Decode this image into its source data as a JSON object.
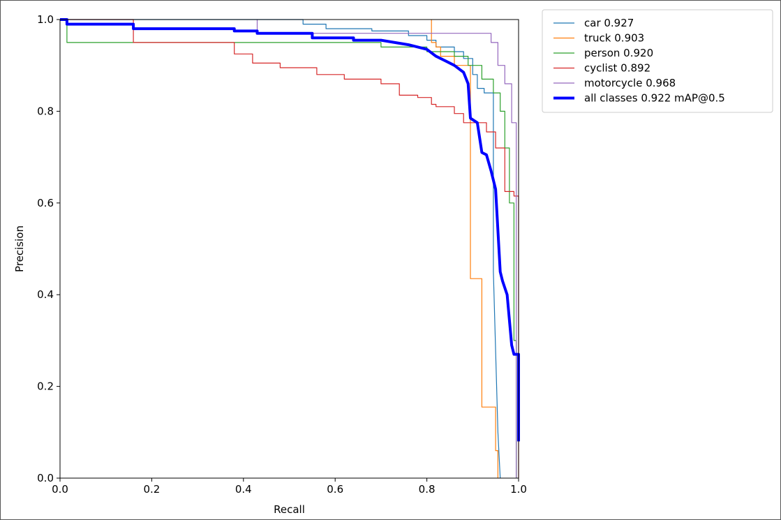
{
  "chart_data": {
    "type": "line",
    "title": "",
    "xlabel": "Recall",
    "ylabel": "Precision",
    "xlim": [
      0,
      1
    ],
    "ylim": [
      0,
      1
    ],
    "xticks": [
      "0.0",
      "0.2",
      "0.4",
      "0.6",
      "0.8",
      "1.0"
    ],
    "yticks": [
      "0.0",
      "0.2",
      "0.4",
      "0.6",
      "0.8",
      "1.0"
    ],
    "grid": false,
    "legend_position": "outside-upper-right",
    "series": [
      {
        "name": "car 0.927",
        "color": "#1f77b4",
        "emphasis": false,
        "x": [
          0,
          0.53,
          0.53,
          0.58,
          0.58,
          0.68,
          0.68,
          0.76,
          0.76,
          0.8,
          0.8,
          0.82,
          0.82,
          0.86,
          0.86,
          0.88,
          0.88,
          0.9,
          0.9,
          0.91,
          0.91,
          0.925,
          0.925,
          0.945,
          0.945,
          0.955,
          0.96
        ],
        "y": [
          1.0,
          1.0,
          0.99,
          0.99,
          0.98,
          0.98,
          0.975,
          0.975,
          0.965,
          0.965,
          0.955,
          0.955,
          0.94,
          0.94,
          0.93,
          0.93,
          0.915,
          0.915,
          0.88,
          0.88,
          0.85,
          0.85,
          0.84,
          0.84,
          0.45,
          0.1,
          0.0
        ]
      },
      {
        "name": "truck 0.903",
        "color": "#ff7f0e",
        "emphasis": false,
        "x": [
          0.81,
          0.81,
          0.82,
          0.82,
          0.83,
          0.83,
          0.86,
          0.86,
          0.895,
          0.895,
          0.92,
          0.92,
          0.95,
          0.95,
          0.955,
          0.955
        ],
        "y": [
          1.0,
          0.95,
          0.95,
          0.94,
          0.94,
          0.92,
          0.92,
          0.9,
          0.9,
          0.435,
          0.435,
          0.155,
          0.155,
          0.06,
          0.06,
          0.0
        ]
      },
      {
        "name": "person 0.920",
        "color": "#2ca02c",
        "emphasis": false,
        "x": [
          0,
          0.015,
          0.015,
          0.7,
          0.7,
          0.8,
          0.8,
          0.86,
          0.86,
          0.89,
          0.89,
          0.92,
          0.92,
          0.945,
          0.945,
          0.96,
          0.96,
          0.97,
          0.97,
          0.98,
          0.98,
          0.99,
          0.99,
          0.995,
          0.995
        ],
        "y": [
          1.0,
          1.0,
          0.95,
          0.95,
          0.94,
          0.94,
          0.93,
          0.93,
          0.92,
          0.92,
          0.9,
          0.9,
          0.87,
          0.87,
          0.84,
          0.84,
          0.8,
          0.8,
          0.72,
          0.72,
          0.6,
          0.6,
          0.3,
          0.3,
          0.0
        ]
      },
      {
        "name": "cyclist 0.892",
        "color": "#d62728",
        "emphasis": false,
        "x": [
          0,
          0.16,
          0.16,
          0.38,
          0.38,
          0.42,
          0.42,
          0.48,
          0.48,
          0.56,
          0.56,
          0.62,
          0.62,
          0.7,
          0.7,
          0.74,
          0.74,
          0.78,
          0.78,
          0.81,
          0.81,
          0.82,
          0.82,
          0.86,
          0.86,
          0.88,
          0.88,
          0.93,
          0.93,
          0.95,
          0.95,
          0.97,
          0.97,
          0.99,
          0.99,
          1.0,
          1.0
        ],
        "y": [
          1.0,
          1.0,
          0.95,
          0.95,
          0.925,
          0.925,
          0.905,
          0.905,
          0.895,
          0.895,
          0.88,
          0.88,
          0.87,
          0.87,
          0.86,
          0.86,
          0.835,
          0.835,
          0.83,
          0.83,
          0.815,
          0.815,
          0.81,
          0.81,
          0.795,
          0.795,
          0.775,
          0.775,
          0.755,
          0.755,
          0.72,
          0.72,
          0.625,
          0.625,
          0.615,
          0.615,
          0.0
        ]
      },
      {
        "name": "motorcycle 0.968",
        "color": "#9467bd",
        "emphasis": false,
        "x": [
          0.43,
          0.43,
          0.94,
          0.94,
          0.955,
          0.955,
          0.97,
          0.97,
          0.985,
          0.985,
          0.995,
          0.995
        ],
        "y": [
          1.0,
          0.97,
          0.97,
          0.95,
          0.95,
          0.9,
          0.9,
          0.86,
          0.86,
          0.775,
          0.775,
          0.0
        ]
      },
      {
        "name": "all classes 0.922 mAP@0.5",
        "color": "#0000ff",
        "emphasis": true,
        "x": [
          0,
          0.015,
          0.015,
          0.16,
          0.16,
          0.38,
          0.38,
          0.43,
          0.43,
          0.55,
          0.55,
          0.64,
          0.64,
          0.7,
          0.76,
          0.8,
          0.82,
          0.84,
          0.86,
          0.88,
          0.89,
          0.895,
          0.91,
          0.92,
          0.93,
          0.94,
          0.95,
          0.96,
          0.965,
          0.975,
          0.985,
          0.99,
          0.995,
          1.0,
          1.0
        ],
        "y": [
          1.0,
          1.0,
          0.99,
          0.99,
          0.98,
          0.98,
          0.975,
          0.975,
          0.97,
          0.97,
          0.96,
          0.96,
          0.955,
          0.955,
          0.945,
          0.935,
          0.92,
          0.91,
          0.9,
          0.885,
          0.86,
          0.785,
          0.775,
          0.71,
          0.705,
          0.67,
          0.63,
          0.45,
          0.43,
          0.4,
          0.29,
          0.27,
          0.27,
          0.27,
          0.08
        ]
      }
    ]
  }
}
